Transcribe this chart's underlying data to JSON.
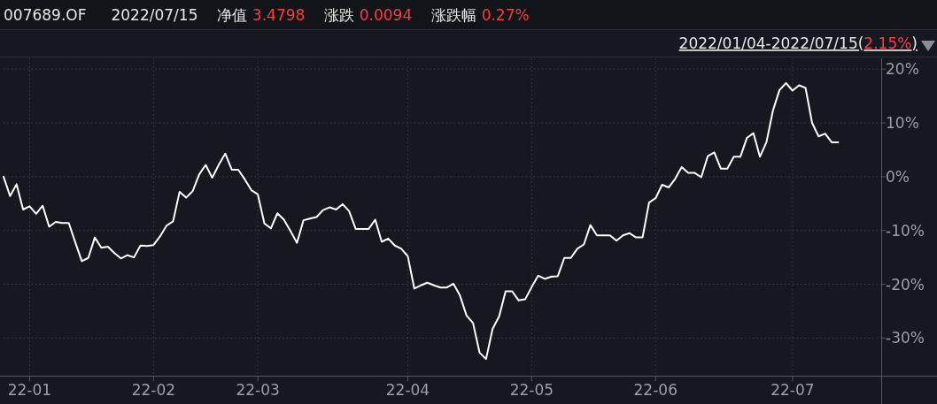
{
  "chart_data": {
    "type": "line",
    "title": "007689.OF",
    "subtitle": "2022/01/04-2022/07/15(2.15%)",
    "annotations": [
      "2022/07/15",
      "净值 3.4798",
      "涨跌 0.0094",
      "涨跌幅 0.27%"
    ],
    "categories": [
      null,
      null,
      null,
      null,
      "22-01",
      null,
      null,
      null,
      null,
      null,
      null,
      null,
      null,
      null,
      null,
      null,
      null,
      null,
      null,
      null,
      null,
      null,
      null,
      "22-02",
      null,
      null,
      null,
      null,
      null,
      null,
      null,
      null,
      null,
      null,
      null,
      null,
      null,
      null,
      null,
      "22-03",
      null,
      null,
      null,
      null,
      null,
      null,
      null,
      null,
      null,
      null,
      null,
      null,
      null,
      null,
      null,
      null,
      null,
      null,
      null,
      null,
      null,
      null,
      "22-04",
      null,
      null,
      null,
      null,
      null,
      null,
      null,
      null,
      null,
      null,
      null,
      null,
      null,
      null,
      null,
      null,
      null,
      null,
      "22-05",
      null,
      null,
      null,
      null,
      null,
      null,
      null,
      null,
      null,
      null,
      null,
      null,
      null,
      null,
      null,
      null,
      null,
      null,
      "22-06",
      null,
      null,
      null,
      null,
      null,
      null,
      null,
      null,
      null,
      null,
      null,
      null,
      null,
      null,
      null,
      null,
      null,
      null,
      null,
      null,
      "22-07",
      null,
      null,
      null,
      null,
      null,
      null,
      null
    ],
    "series": [
      {
        "color": "#ffffff",
        "values": [
          0.0,
          -3.6,
          -1.4,
          -6.1,
          -5.5,
          -6.9,
          -5.4,
          -9.3,
          -8.4,
          -8.6,
          -8.6,
          -12.2,
          -15.7,
          -15.1,
          -11.3,
          -13.2,
          -13.0,
          -14.2,
          -15.2,
          -14.6,
          -15.0,
          -12.8,
          -12.9,
          -12.7,
          -11.1,
          -9.1,
          -8.3,
          -2.8,
          -3.9,
          -2.7,
          0.4,
          2.2,
          -0.2,
          2.2,
          4.3,
          1.3,
          1.3,
          -0.5,
          -2.5,
          -3.3,
          -8.7,
          -9.6,
          -6.8,
          -8.0,
          -10.1,
          -12.3,
          -8.1,
          -7.8,
          -7.5,
          -6.2,
          -5.7,
          -6.1,
          -5.1,
          -6.4,
          -9.7,
          -9.7,
          -9.7,
          -8.0,
          -12.1,
          -11.5,
          -12.8,
          -13.4,
          -14.8,
          -20.8,
          -20.2,
          -19.7,
          -20.2,
          -20.6,
          -20.6,
          -19.9,
          -22.1,
          -25.8,
          -27.2,
          -32.7,
          -33.9,
          -28.3,
          -26.0,
          -21.3,
          -21.3,
          -23.0,
          -22.8,
          -20.5,
          -18.4,
          -19.0,
          -18.6,
          -18.5,
          -15.1,
          -15.1,
          -13.4,
          -12.6,
          -9.0,
          -10.9,
          -10.9,
          -10.9,
          -11.9,
          -10.9,
          -10.5,
          -11.3,
          -11.3,
          -4.8,
          -4.0,
          -1.5,
          -2.0,
          -0.4,
          1.8,
          0.7,
          0.7,
          -0.1,
          3.8,
          4.5,
          1.5,
          1.5,
          3.7,
          3.7,
          7.2,
          8.1,
          3.7,
          6.4,
          12.3,
          16.1,
          17.4,
          16.0,
          17.0,
          16.5,
          10.0,
          7.5,
          8.0,
          6.4,
          6.4
        ]
      }
    ],
    "ylim": [
      -37,
      22
    ],
    "yticks": [
      {
        "value": 20,
        "label": "20%"
      },
      {
        "value": 10,
        "label": "10%"
      },
      {
        "value": 0,
        "label": "0%"
      },
      {
        "value": -10,
        "label": "-10%"
      },
      {
        "value": -20,
        "label": "-20%"
      },
      {
        "value": -30,
        "label": "-30%"
      }
    ],
    "grid": true,
    "line_style": "solid",
    "marker": "none"
  }
}
